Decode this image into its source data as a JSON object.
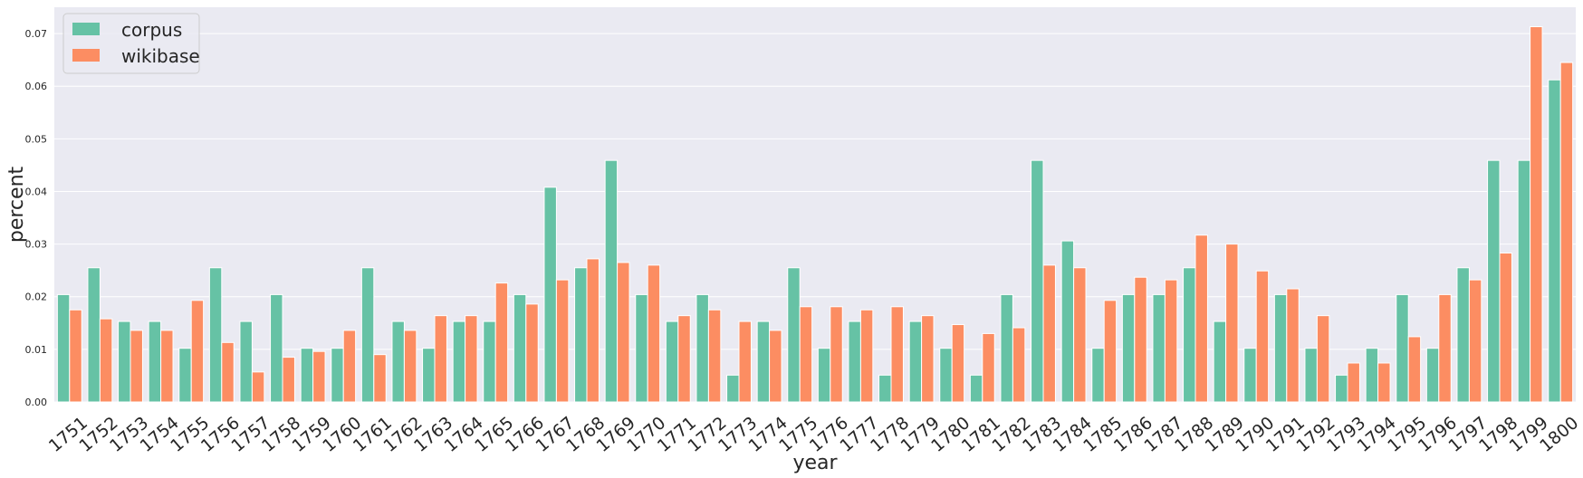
{
  "chart_data": {
    "type": "bar",
    "xlabel": "year",
    "ylabel": "percent",
    "ylim": [
      0,
      0.075
    ],
    "yticks": [
      "0.00",
      "0.01",
      "0.02",
      "0.03",
      "0.04",
      "0.05",
      "0.06",
      "0.07"
    ],
    "grid": true,
    "legend_position": "top-left",
    "colors": {
      "background": "#eaeaf2",
      "grid": "#ffffff",
      "corpus": "#66c2a5",
      "wikibase": "#fc8d62"
    },
    "categories": [
      "1751",
      "1752",
      "1753",
      "1754",
      "1755",
      "1756",
      "1757",
      "1758",
      "1759",
      "1760",
      "1761",
      "1762",
      "1763",
      "1764",
      "1765",
      "1766",
      "1767",
      "1768",
      "1769",
      "1770",
      "1771",
      "1772",
      "1773",
      "1774",
      "1775",
      "1776",
      "1777",
      "1778",
      "1779",
      "1780",
      "1781",
      "1782",
      "1783",
      "1784",
      "1785",
      "1786",
      "1787",
      "1788",
      "1789",
      "1790",
      "1791",
      "1792",
      "1793",
      "1794",
      "1795",
      "1796",
      "1797",
      "1798",
      "1799",
      "1800"
    ],
    "series": [
      {
        "name": "corpus",
        "values": [
          0.0204,
          0.0255,
          0.0153,
          0.0153,
          0.0102,
          0.0255,
          0.0153,
          0.0204,
          0.0102,
          0.0102,
          0.0255,
          0.0153,
          0.0102,
          0.0153,
          0.0153,
          0.0204,
          0.0408,
          0.0255,
          0.0459,
          0.0204,
          0.0153,
          0.0204,
          0.0051,
          0.0153,
          0.0255,
          0.0102,
          0.0153,
          0.0051,
          0.0153,
          0.0102,
          0.0051,
          0.0204,
          0.0459,
          0.0306,
          0.0102,
          0.0204,
          0.0204,
          0.0255,
          0.0153,
          0.0102,
          0.0204,
          0.0102,
          0.0051,
          0.0102,
          0.0204,
          0.0102,
          0.0255,
          0.0459,
          0.0459,
          0.0612
        ]
      },
      {
        "name": "wikibase",
        "values": [
          0.0175,
          0.0158,
          0.0136,
          0.0136,
          0.0193,
          0.0113,
          0.0057,
          0.0085,
          0.0096,
          0.0136,
          0.009,
          0.0136,
          0.0164,
          0.0164,
          0.0226,
          0.0186,
          0.0232,
          0.0272,
          0.0265,
          0.026,
          0.0164,
          0.0175,
          0.0153,
          0.0136,
          0.0181,
          0.0181,
          0.0175,
          0.0181,
          0.0164,
          0.0147,
          0.013,
          0.0141,
          0.026,
          0.0255,
          0.0193,
          0.0237,
          0.0232,
          0.0317,
          0.03,
          0.0249,
          0.0215,
          0.0164,
          0.0074,
          0.0074,
          0.0124,
          0.0204,
          0.0232,
          0.0283,
          0.0713,
          0.0645
        ]
      }
    ]
  }
}
